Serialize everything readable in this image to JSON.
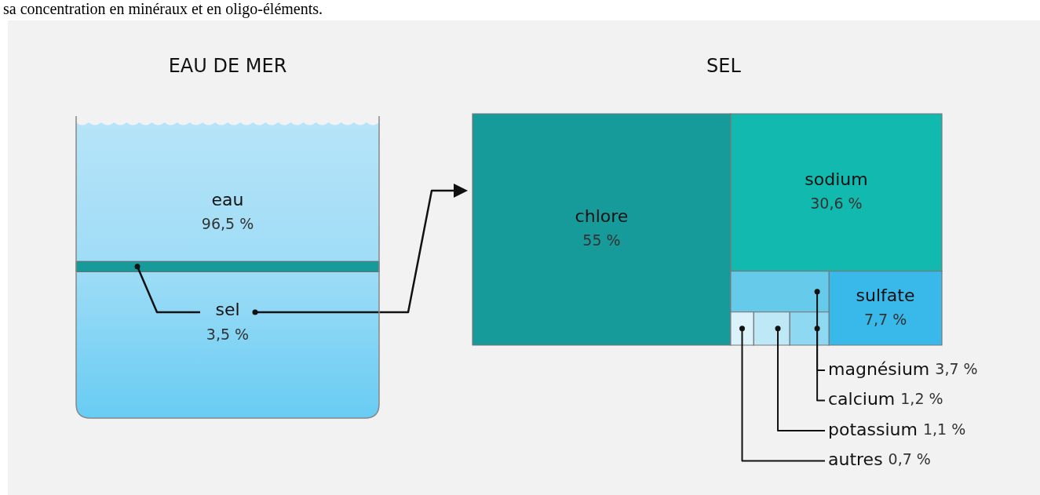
{
  "chart_data": [
    {
      "type": "other",
      "title": "EAU DE MER",
      "categories": [
        "eau",
        "sel"
      ],
      "values": [
        96.5,
        3.5
      ],
      "value_labels": [
        "96,5 %",
        "3,5 %"
      ],
      "colors": [
        "#9edcf6",
        "#179a9a"
      ],
      "annotations": [
        "sa concentration en minéraux et en oligo-éléments."
      ]
    },
    {
      "type": "other",
      "title": "SEL",
      "categories": [
        "chlore",
        "sodium",
        "sulfate",
        "magnésium",
        "calcium",
        "potassium",
        "autres"
      ],
      "values": [
        55,
        30.6,
        7.7,
        3.7,
        1.2,
        1.1,
        0.7
      ],
      "value_labels": [
        "55 %",
        "30,6 %",
        "7,7 %",
        "3,7 %",
        "1,2 %",
        "1,1 %",
        "0,7 %"
      ],
      "colors": [
        "#179a9a",
        "#12b9ae",
        "#39b8ea",
        "#66cbea",
        "#8fd8f2",
        "#bfe8f6",
        "#dbf2fb"
      ]
    }
  ]
}
